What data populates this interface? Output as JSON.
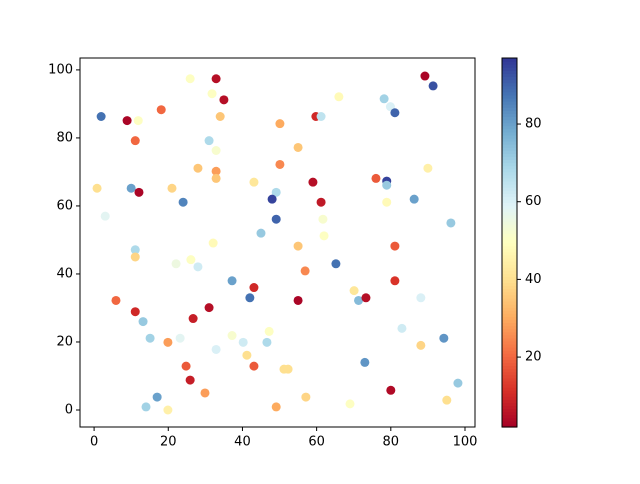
{
  "chart_data": {
    "type": "scatter",
    "x": [
      25.9,
      32.9,
      78.2,
      89.2,
      91.4,
      1.9,
      8.9,
      11.9,
      18.1,
      31.8,
      35,
      34,
      50.1,
      59.8,
      61.2,
      66,
      79.9,
      81.1,
      11.1,
      31,
      32.9,
      55,
      0.8,
      10,
      12.1,
      21,
      28,
      32.9,
      32.9,
      43.1,
      50.1,
      59,
      49.1,
      48,
      24,
      61.2,
      76,
      78.9,
      78.9,
      78.9,
      86.3,
      90,
      96.2,
      3,
      49.1,
      61.7,
      45,
      62,
      11.1,
      11.1,
      22.1,
      26.1,
      28,
      32.1,
      55,
      56.9,
      65.2,
      81.1,
      81.1,
      37.2,
      43.1,
      42,
      55,
      70.1,
      71.3,
      73.3,
      88.1,
      5.9,
      11.1,
      13.2,
      15.1,
      19.9,
      23.2,
      26.7,
      31,
      32.9,
      37.2,
      40.2,
      41.2,
      43.1,
      47.2,
      46.6,
      51.2,
      52.3,
      24.8,
      25.9,
      29.9,
      17,
      14,
      19.9,
      49.1,
      57.1,
      69,
      80,
      73,
      83,
      88.1,
      94.3,
      95.1,
      98.1
    ],
    "y": [
      97.4,
      97.4,
      91.5,
      98.2,
      95.3,
      86.3,
      85.1,
      85.1,
      88.3,
      93,
      91.2,
      86.3,
      84.2,
      86.3,
      86.3,
      92.1,
      89.2,
      87.4,
      79.2,
      79.2,
      76.3,
      77.2,
      65.2,
      65.2,
      64,
      65.2,
      71.1,
      70.2,
      68.1,
      67,
      72.2,
      67,
      64,
      62,
      61.1,
      61.1,
      68.1,
      67.3,
      66.1,
      61.1,
      62,
      71.1,
      55,
      57,
      56.1,
      56.1,
      52,
      51.2,
      47.1,
      45,
      43,
      44.2,
      42.1,
      49.1,
      48.2,
      40.9,
      43,
      48.2,
      38,
      38,
      36,
      33,
      32.2,
      35.1,
      32.2,
      33,
      33,
      32.2,
      28.9,
      26,
      21.1,
      19.9,
      21.1,
      26.9,
      30.1,
      17.8,
      21.9,
      19.9,
      16.1,
      12.9,
      23.1,
      19.9,
      12,
      12,
      12.9,
      8.8,
      5,
      3.8,
      0.9,
      0,
      0.9,
      3.8,
      1.8,
      5.8,
      14,
      24,
      19,
      21.1,
      2.9,
      7.9
    ],
    "c": [
      50,
      5,
      70,
      3,
      93,
      88,
      3,
      50,
      20,
      50,
      5,
      35,
      30,
      10,
      65,
      48,
      60,
      90,
      20,
      68,
      52,
      35,
      40,
      80,
      3,
      38,
      35,
      28,
      35,
      42,
      25,
      5,
      68,
      95,
      85,
      7,
      18,
      95,
      72,
      48,
      80,
      45,
      72,
      58,
      90,
      52,
      72,
      50,
      68,
      38,
      55,
      50,
      62,
      48,
      35,
      25,
      88,
      18,
      12,
      80,
      10,
      88,
      3,
      42,
      75,
      5,
      60,
      20,
      10,
      72,
      70,
      28,
      58,
      8,
      5,
      60,
      52,
      62,
      40,
      18,
      50,
      68,
      40,
      40,
      18,
      8,
      28,
      80,
      70,
      45,
      30,
      38,
      50,
      4,
      82,
      62,
      38,
      82,
      40,
      72
    ],
    "xlim": [
      -3.8,
      102.7
    ],
    "ylim": [
      -5,
      103.5
    ],
    "xticks": [
      0,
      20,
      40,
      60,
      80,
      100
    ],
    "yticks": [
      0,
      20,
      40,
      60,
      80,
      100
    ],
    "clim": [
      2,
      97
    ],
    "cticks": [
      20,
      40,
      60,
      80
    ],
    "colormap": [
      "#a50026",
      "#d73027",
      "#f46d43",
      "#fdae61",
      "#fee090",
      "#ffffbf",
      "#e0f3f8",
      "#abd9e9",
      "#74add1",
      "#4575b4",
      "#313695"
    ]
  }
}
